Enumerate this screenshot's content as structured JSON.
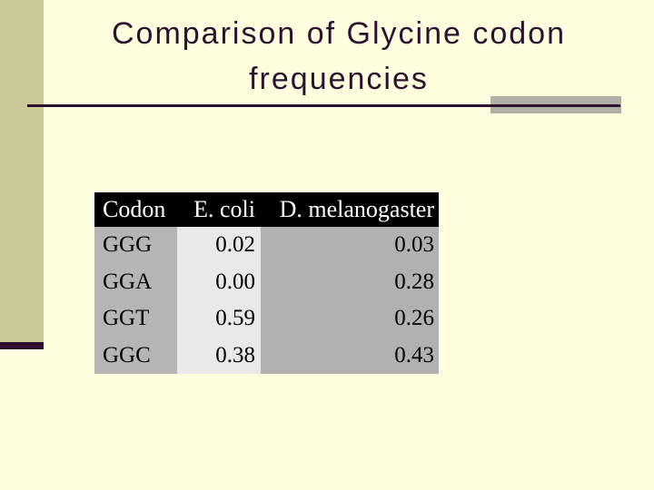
{
  "slide": {
    "title_lines": [
      "Comparison of Glycine codon",
      "frequencies"
    ]
  },
  "table": {
    "headers": [
      "Codon",
      "E. coli",
      "D. melanogaster"
    ],
    "rows": [
      [
        "GGG",
        "0.02",
        "0.03"
      ],
      [
        "GGA",
        "0.00",
        "0.28"
      ],
      [
        "GGT",
        "0.59",
        "0.26"
      ],
      [
        "GGC",
        "0.38",
        "0.43"
      ]
    ]
  },
  "colors": {
    "background": "#ffffe0",
    "sidebar_accent": "#cbc995",
    "sidebar_footer_accent": "#2f0d2f",
    "title_text": "#2d1130",
    "title_rule": "#2d1130",
    "gray_accent_bar": "#b0afa8",
    "table_header_bg": "#000000",
    "table_header_text": "#ffffff",
    "codon_column_bg": "#b5b5b5",
    "ecoli_column_bg": "#e9e9e9",
    "dmel_column_bg": "#b1b1b1"
  },
  "chart_data": {
    "type": "table",
    "title": "Comparison of Glycine codon frequencies",
    "columns": [
      "Codon",
      "E. coli",
      "D. melanogaster"
    ],
    "categories": [
      "GGG",
      "GGA",
      "GGT",
      "GGC"
    ],
    "series": [
      {
        "name": "E. coli",
        "values": [
          0.02,
          0.0,
          0.59,
          0.38
        ]
      },
      {
        "name": "D. melanogaster",
        "values": [
          0.03,
          0.28,
          0.26,
          0.43
        ]
      }
    ]
  }
}
